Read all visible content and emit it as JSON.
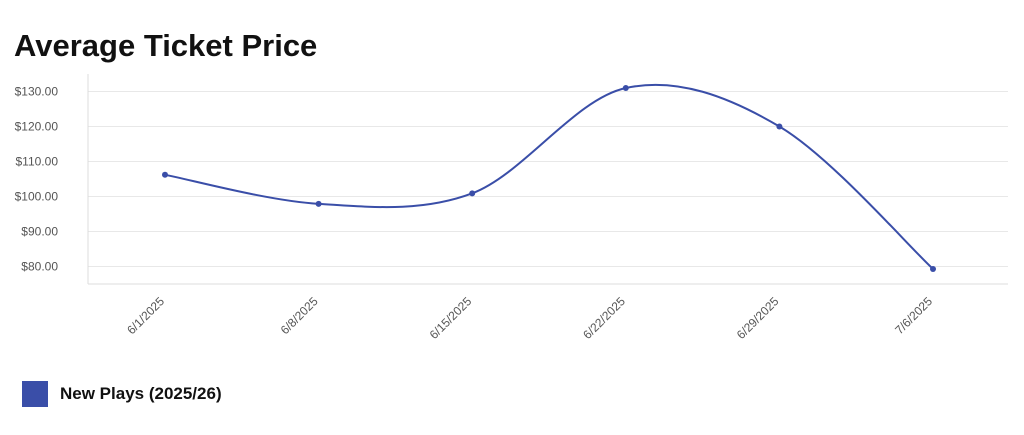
{
  "chart_data": {
    "type": "line",
    "title": "Average Ticket Price",
    "categories": [
      "6/1/2025",
      "6/8/2025",
      "6/15/2025",
      "6/22/2025",
      "6/29/2025",
      "7/6/2025"
    ],
    "series": [
      {
        "name": "New Plays (2025/26)",
        "values": [
          106.2,
          97.9,
          100.9,
          131.0,
          120.0,
          79.3
        ]
      }
    ],
    "yticks": [
      "$80.00",
      "$90.00",
      "$100.00",
      "$110.00",
      "$120.00",
      "$130.00"
    ],
    "ylim": [
      75,
      135
    ],
    "xlabel": "",
    "ylabel": "",
    "grid": true,
    "legend": "bottom-left",
    "smooth": true,
    "colors": {
      "series": "#3a4ea8",
      "grid": "#e8e8e8",
      "axis": "#dddddd",
      "tick": "#555555"
    }
  }
}
